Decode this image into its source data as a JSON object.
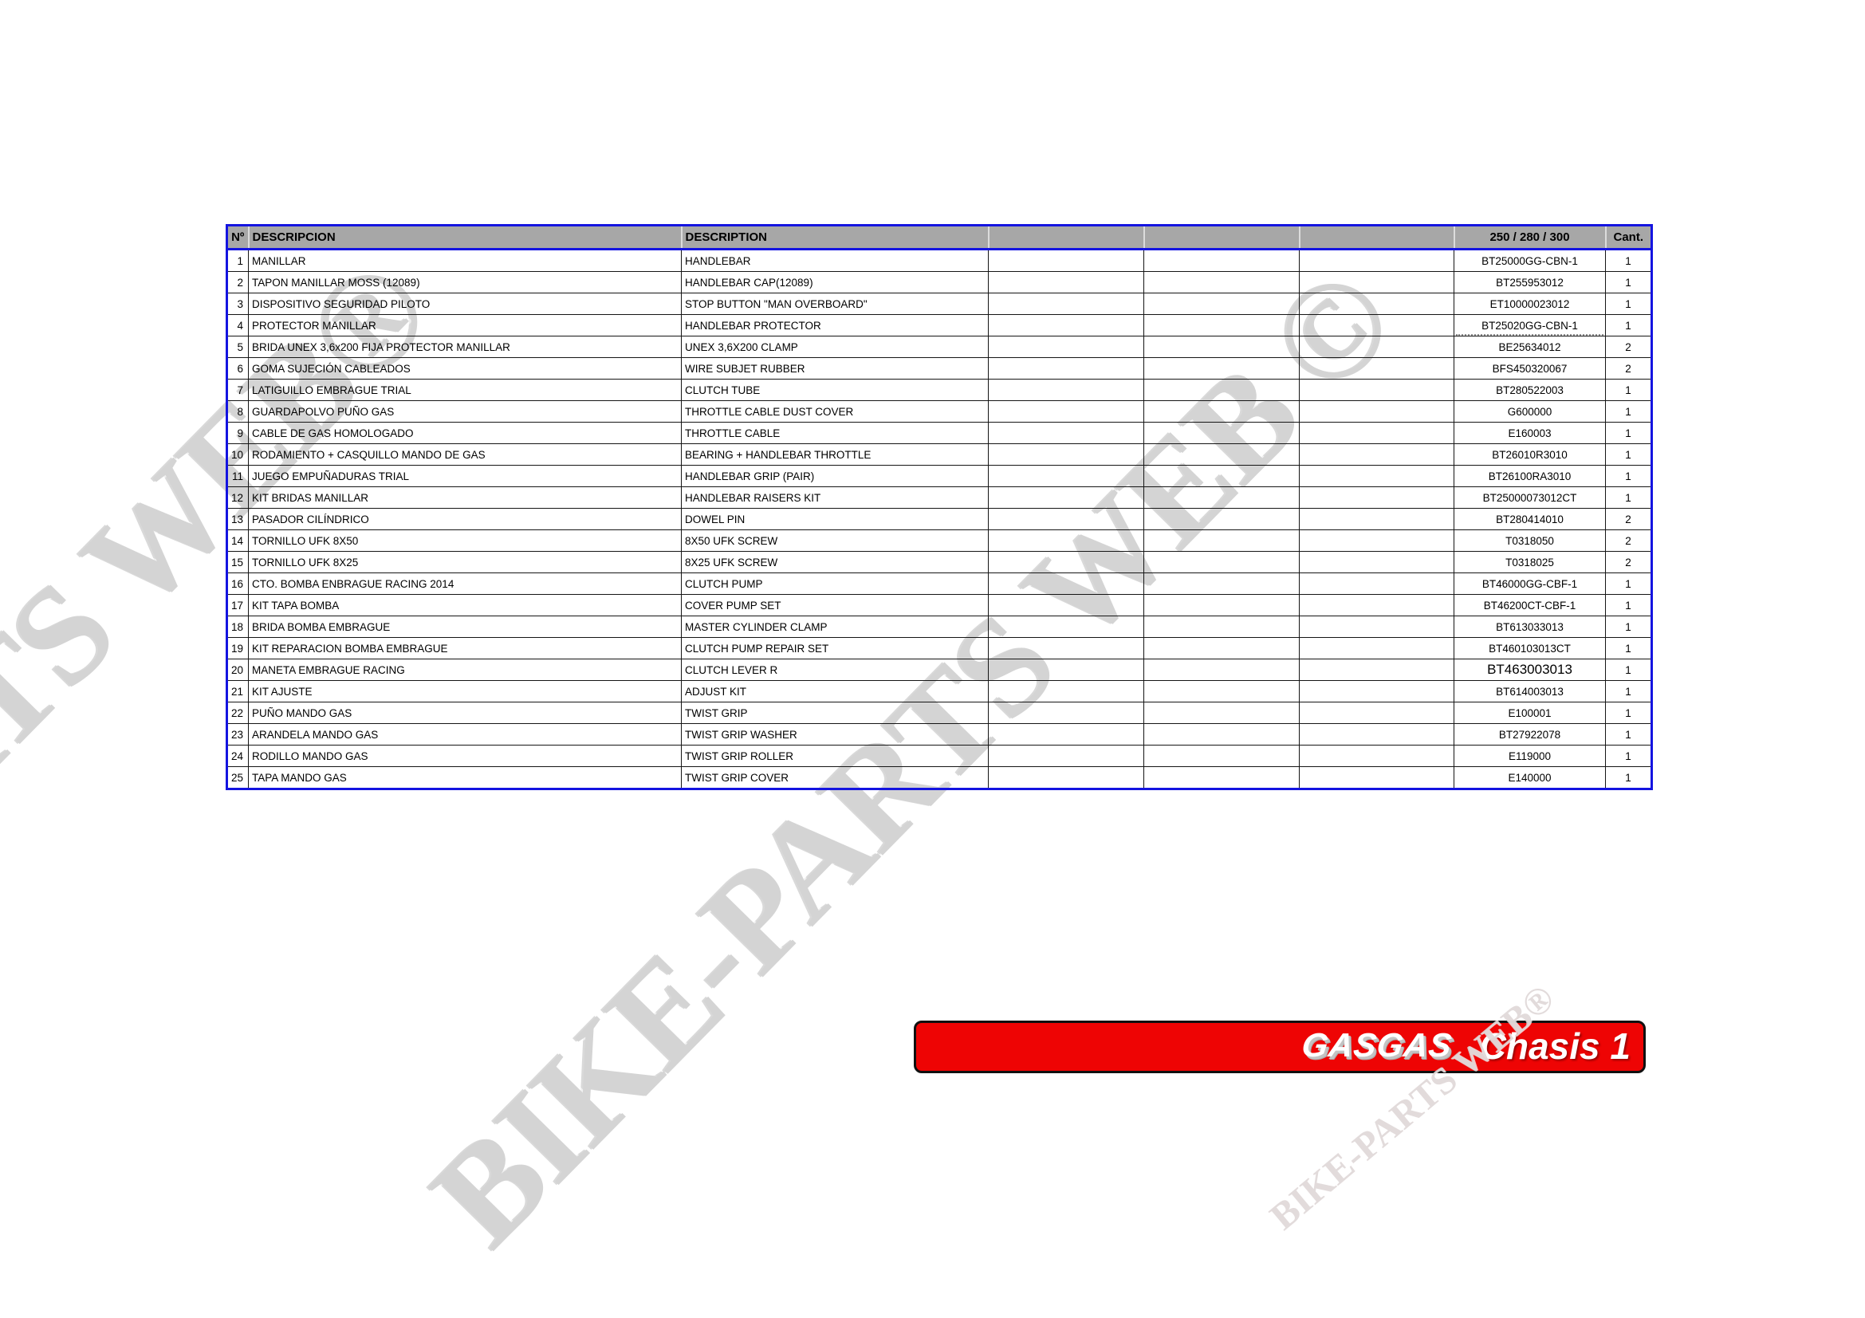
{
  "colors": {
    "table_outer_border": "#1414e0",
    "header_fill": "#a7a7a7",
    "banner_red": "#ee0404",
    "watermark_gray": "#d4d4d4"
  },
  "watermarks": {
    "top_left": "BIKE-PARTS WEB®",
    "center": "BIKE-PARTS WEB ©",
    "bottom_right": "BIKE-PARTS WEB®"
  },
  "banner": {
    "brand": "GASGAS",
    "title": "Chasis 1"
  },
  "table": {
    "headers": {
      "num": "Nº",
      "descripcion": "DESCRIPCION",
      "description": "DESCRIPTION",
      "ref": "250 / 280 / 300",
      "qty": "Cant."
    },
    "rows": [
      {
        "num": "1",
        "descripcion": "MANILLAR",
        "description": "HANDLEBAR",
        "ref": "BT25000GG-CBN-1",
        "qty": "1"
      },
      {
        "num": "2",
        "descripcion": "TAPON MANILLAR MOSS (12089)",
        "description": "HANDLEBAR CAP(12089)",
        "ref": "BT255953012",
        "qty": "1"
      },
      {
        "num": "3",
        "descripcion": "DISPOSITIVO SEGURIDAD PILOTO",
        "description": "STOP BUTTON \"MAN OVERBOARD\"",
        "ref": "ET10000023012",
        "qty": "1"
      },
      {
        "num": "4",
        "descripcion": "PROTECTOR MANILLAR",
        "description": "HANDLEBAR PROTECTOR",
        "ref": "BT25020GG-CBN-1",
        "qty": "1",
        "ref_dashed": true
      },
      {
        "num": "5",
        "descripcion": "BRIDA UNEX 3,6x200 FIJA PROTECTOR MANILLAR",
        "description": "UNEX 3,6X200 CLAMP",
        "ref": "BE25634012",
        "qty": "2"
      },
      {
        "num": "6",
        "descripcion": "GOMA SUJECIÓN CABLEADOS",
        "description": "WIRE SUBJET RUBBER",
        "ref": "BFS450320067",
        "qty": "2"
      },
      {
        "num": "7",
        "descripcion": "LATIGUILLO EMBRAGUE TRIAL",
        "description": "CLUTCH TUBE",
        "ref": "BT280522003",
        "qty": "1"
      },
      {
        "num": "8",
        "descripcion": "GUARDAPOLVO PUÑO GAS",
        "description": "THROTTLE CABLE DUST COVER",
        "ref": "G600000",
        "qty": "1"
      },
      {
        "num": "9",
        "descripcion": "CABLE DE GAS HOMOLOGADO",
        "description": "THROTTLE CABLE",
        "ref": "E160003",
        "qty": "1"
      },
      {
        "num": "10",
        "descripcion": "RODAMIENTO + CASQUILLO MANDO DE GAS",
        "description": "BEARING + HANDLEBAR THROTTLE",
        "ref": "BT26010R3010",
        "qty": "1"
      },
      {
        "num": "11",
        "descripcion": "JUEGO EMPUÑADURAS TRIAL",
        "description": "HANDLEBAR GRIP (PAIR)",
        "ref": "BT26100RA3010",
        "qty": "1"
      },
      {
        "num": "12",
        "descripcion": "KIT BRIDAS MANILLAR",
        "description": "HANDLEBAR RAISERS KIT",
        "ref": "BT25000073012CT",
        "qty": "1"
      },
      {
        "num": "13",
        "descripcion": "PASADOR CILÍNDRICO",
        "description": "DOWEL PIN",
        "ref": "BT280414010",
        "qty": "2"
      },
      {
        "num": "14",
        "descripcion": "TORNILLO UFK 8X50",
        "description": "8X50 UFK SCREW",
        "ref": "T0318050",
        "qty": "2"
      },
      {
        "num": "15",
        "descripcion": "TORNILLO UFK 8X25",
        "description": "8X25 UFK SCREW",
        "ref": "T0318025",
        "qty": "2"
      },
      {
        "num": "16",
        "descripcion": "CTO. BOMBA ENBRAGUE RACING 2014",
        "description": "CLUTCH PUMP",
        "ref": "BT46000GG-CBF-1",
        "qty": "1"
      },
      {
        "num": "17",
        "descripcion": "KIT TAPA BOMBA",
        "description": "COVER PUMP SET",
        "ref": "BT46200CT-CBF-1",
        "qty": "1"
      },
      {
        "num": "18",
        "descripcion": "BRIDA BOMBA EMBRAGUE",
        "description": "MASTER CYLINDER CLAMP",
        "ref": "BT613033013",
        "qty": "1"
      },
      {
        "num": "19",
        "descripcion": "KIT REPARACION BOMBA EMBRAGUE",
        "description": "CLUTCH PUMP REPAIR SET",
        "ref": "BT460103013CT",
        "qty": "1"
      },
      {
        "num": "20",
        "descripcion": "MANETA EMBRAGUE RACING",
        "description": "CLUTCH LEVER R",
        "ref": "BT463003013",
        "qty": "1",
        "ref_big": true
      },
      {
        "num": "21",
        "descripcion": "KIT AJUSTE",
        "description": "ADJUST KIT",
        "ref": "BT614003013",
        "qty": "1"
      },
      {
        "num": "22",
        "descripcion": "PUÑO MANDO GAS",
        "description": "TWIST GRIP",
        "ref": "E100001",
        "qty": "1"
      },
      {
        "num": "23",
        "descripcion": "ARANDELA MANDO GAS",
        "description": "TWIST GRIP WASHER",
        "ref": "BT27922078",
        "qty": "1"
      },
      {
        "num": "24",
        "descripcion": "RODILLO MANDO GAS",
        "description": "TWIST GRIP ROLLER",
        "ref": "E119000",
        "qty": "1"
      },
      {
        "num": "25",
        "descripcion": "TAPA MANDO GAS",
        "description": "TWIST GRIP COVER",
        "ref": "E140000",
        "qty": "1"
      }
    ]
  }
}
